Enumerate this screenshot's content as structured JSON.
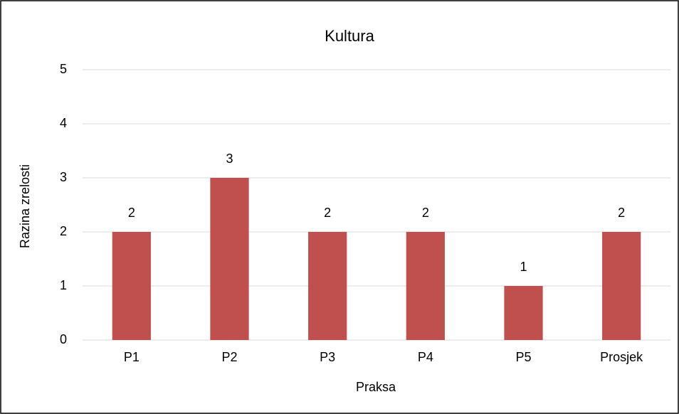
{
  "chart_data": {
    "type": "bar",
    "title": "Kultura",
    "x_label": "Praksa",
    "y_label": "Razina zrelosti",
    "categories": [
      "P1",
      "P2",
      "P3",
      "P4",
      "P5",
      "Prosjek"
    ],
    "values": [
      2,
      3,
      2,
      2,
      1,
      2
    ],
    "color": "#c0504d",
    "ylim": [
      0,
      5
    ],
    "yticks": [
      0,
      1,
      2,
      3,
      4,
      5
    ],
    "grid": true
  }
}
